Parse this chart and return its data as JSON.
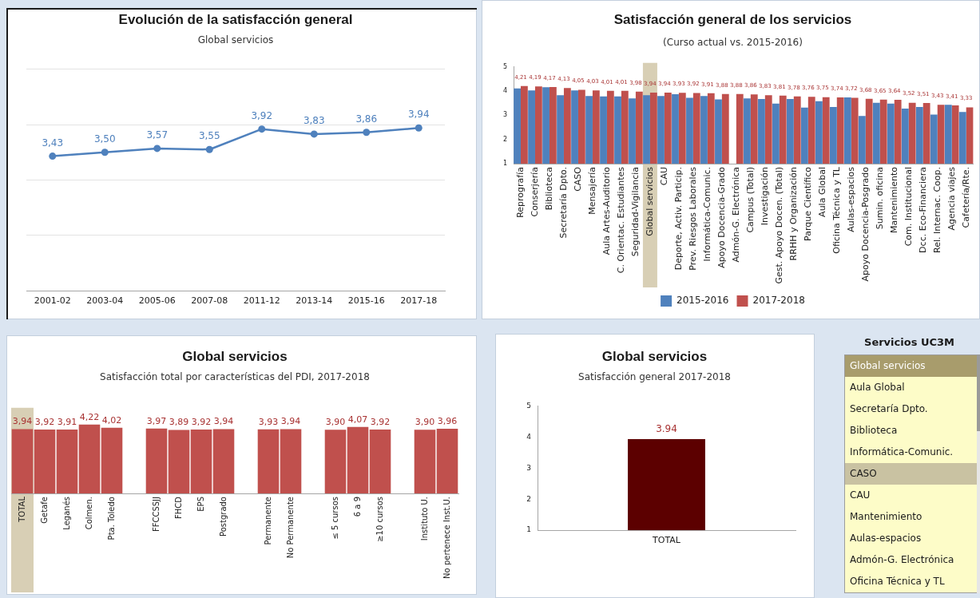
{
  "chart_data": [
    {
      "type": "line",
      "title": "Evolución de la satisfacción general",
      "subtitle": "Global servicios",
      "categories": [
        "2001-02",
        "2003-04",
        "2005-06",
        "2007-08",
        "2011-12",
        "2013-14",
        "2015-16",
        "2017-18"
      ],
      "values": [
        3.43,
        3.5,
        3.57,
        3.55,
        3.92,
        3.83,
        3.86,
        3.94
      ],
      "value_labels": [
        "3,43",
        "3,50",
        "3,57",
        "3,55",
        "3,92",
        "3,83",
        "3,86",
        "3,94"
      ],
      "color": "#4f81bd",
      "marker": "circle",
      "line_style": "solid",
      "ylim": [
        1,
        5
      ],
      "yticks": [
        {
          "value": 1,
          "label": null
        },
        {
          "value": 2,
          "label": null
        },
        {
          "value": 3,
          "label": null
        },
        {
          "value": 4,
          "label": null
        },
        {
          "value": 5,
          "label": null
        }
      ],
      "grid": "y",
      "tick_labels": "x"
    },
    {
      "type": "bar",
      "title": "Satisfacción general de los servicios",
      "subtitle": "(Curso actual vs. 2015-2016)",
      "categories": [
        "Reprografía",
        "Conserjería",
        "Biblioteca",
        "Secretaría Dpto.",
        "CASO",
        "Mensajería",
        "Aula Artes-Auditorio",
        "C. Orientac. Estudiantes",
        "Seguridad-Vigilancia",
        "Global servicios",
        "CAU",
        "Deporte, Activ. Particip.",
        "Prev. Riesgos Laborales",
        "Informática-Comunic.",
        "Apoyo Docencia-Grado",
        "Admón-G. Electrónica",
        "Campus (Total)",
        "Investigación",
        "Gest. Apoyo Docen. (Total)",
        "RRHH y Organización",
        "Parque Científico",
        "Aula Global",
        "Oficina Técnica y TL",
        "Aulas-espacios",
        "Apoyo Docencia-Posgrado",
        "Sumin. oficina",
        "Mantenimiento",
        "Com. Institucional",
        "Dcc. Eco-Financiera",
        "Rel. Internac. Coop.",
        "Agencia viajes",
        "Cafetería/Rte."
      ],
      "series": [
        {
          "name": "2015-2016",
          "color": "#4f81bd",
          "values": [
            4.11,
            4.03,
            4.16,
            3.83,
            4.03,
            3.8,
            3.78,
            3.78,
            3.7,
            3.83,
            3.8,
            3.87,
            3.72,
            3.8,
            3.66,
            null,
            3.7,
            3.67,
            3.48,
            3.67,
            3.32,
            3.58,
            3.34,
            3.74,
            2.97,
            3.52,
            3.48,
            3.28,
            3.34,
            3.03,
            3.43,
            3.14
          ]
        },
        {
          "name": "2017-2018",
          "color": "#c0504d",
          "values": [
            4.21,
            4.19,
            4.17,
            4.13,
            4.05,
            4.03,
            4.01,
            4.01,
            3.98,
            3.94,
            3.94,
            3.93,
            3.92,
            3.91,
            3.88,
            3.88,
            3.86,
            3.83,
            3.81,
            3.78,
            3.76,
            3.75,
            3.74,
            3.72,
            3.68,
            3.65,
            3.64,
            3.52,
            3.51,
            3.43,
            3.41,
            3.33
          ],
          "value_labels": [
            "4,21",
            "4,19",
            "4,17",
            "4,13",
            "4,05",
            "4,03",
            "4,01",
            "4,01",
            "3,98",
            "3,94",
            "3,94",
            "3,93",
            "3,92",
            "3,91",
            "3,88",
            "3,88",
            "3,86",
            "3,83",
            "3,81",
            "3,78",
            "3,76",
            "3,75",
            "3,74",
            "3,72",
            "3,68",
            "3,65",
            "3,64",
            "3,52",
            "3,51",
            "3,43",
            "3,41",
            "3,33"
          ]
        }
      ],
      "ylim": [
        1,
        5
      ],
      "yticks": [
        1,
        2,
        3,
        4,
        5
      ],
      "legend": "bottom",
      "bands": [
        {
          "axis": "x",
          "from": "Global servicios",
          "to": "Global servicios",
          "color": "#d8cfb5"
        }
      ]
    },
    {
      "type": "bar",
      "title": "Global servicios",
      "subtitle": "Satisfacción total por características del PDI, 2017-2018",
      "categories": [
        "TOTAL",
        "Getafe",
        "Leganés",
        "Colmen.",
        "Pta. Toledo",
        null,
        "FFCCSSJJ",
        "FHCD",
        "EPS",
        "Postgrado",
        null,
        "Permanente",
        "No Permanente",
        null,
        "≤ 5 cursos",
        "6 a 9",
        "≥10 cursos",
        null,
        "Instituto U.",
        "No pertenece Inst.U."
      ],
      "values": [
        3.94,
        3.92,
        3.91,
        4.22,
        4.02,
        null,
        3.97,
        3.89,
        3.92,
        3.94,
        null,
        3.93,
        3.94,
        null,
        3.9,
        4.07,
        3.92,
        null,
        3.9,
        3.96
      ],
      "value_labels": [
        "3,94",
        "3,92",
        "3,91",
        "4,22",
        "4,02",
        null,
        "3,97",
        "3,89",
        "3,92",
        "3,94",
        null,
        "3,93",
        "3,94",
        null,
        "3,90",
        "4,07",
        "3,92",
        null,
        "3,90",
        "3,96"
      ],
      "color": "#c0504d",
      "tick_labels": "x",
      "bands": [
        {
          "axis": "x",
          "from": "TOTAL",
          "to": "TOTAL",
          "color": "#d8cfb5"
        }
      ]
    },
    {
      "type": "bar",
      "title": "Global servicios",
      "subtitle": "Satisfacción general 2017-2018",
      "categories": [
        "TOTAL"
      ],
      "values": [
        3.94
      ],
      "color": "#5c0000",
      "ylim": [
        1,
        5
      ],
      "yticks": [
        1,
        2,
        3,
        4,
        5
      ],
      "data_labels": true
    },
    {
      "type": "other",
      "title": "Servicios UC3M",
      "categories": [
        "Global servicios",
        "Aula Global",
        "Secretaría Dpto.",
        "Biblioteca",
        "Informática-Comunic.",
        "CASO",
        "CAU",
        "Mantenimiento",
        "Aulas-espacios",
        "Admón-G. Electrónica",
        "Oficina Técnica y TL"
      ],
      "colors": [
        "#a89c6c",
        "#fdfcc8",
        "#fdfcc8",
        "#fdfcc8",
        "#fdfcc8",
        "#c9c2a2",
        "#fdfcc8",
        "#fdfcc8",
        "#fdfcc8",
        "#fdfcc8",
        "#fdfcc8"
      ]
    }
  ]
}
